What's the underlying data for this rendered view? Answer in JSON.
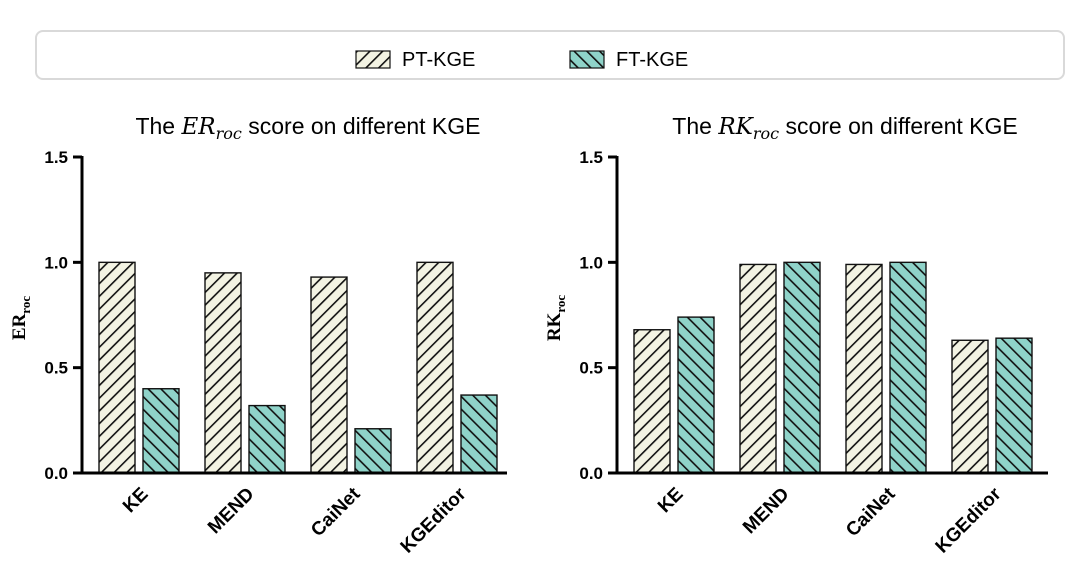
{
  "legend": [
    {
      "name": "PT-KGE",
      "pattern": "hatch-pt"
    },
    {
      "name": "FT-KGE",
      "pattern": "hatch-ft"
    }
  ],
  "colors": {
    "pt_fill": "#f3f3e3",
    "ft_fill": "#8fd3c9",
    "stroke": "#111111"
  },
  "chart_data": [
    {
      "type": "bar",
      "title_prefix": "The ",
      "title_math_main": "ER",
      "title_math_sub": "roc",
      "title_suffix": " score on different KGE",
      "ylabel_main": "ER",
      "ylabel_sub": "roc",
      "xlabel": "",
      "ylim": [
        0,
        1.5
      ],
      "yticks": [
        "0.0",
        "0.5",
        "1.0",
        "1.5"
      ],
      "categories": [
        "KE",
        "MEND",
        "CaiNet",
        "KGEditor"
      ],
      "series": [
        {
          "name": "PT-KGE",
          "values": [
            1.0,
            0.95,
            0.93,
            1.0
          ]
        },
        {
          "name": "FT-KGE",
          "values": [
            0.4,
            0.32,
            0.21,
            0.37
          ]
        }
      ],
      "grid": false
    },
    {
      "type": "bar",
      "title_prefix": "The ",
      "title_math_main": "RK",
      "title_math_sub": "roc",
      "title_suffix": " score on different KGE",
      "ylabel_main": "RK",
      "ylabel_sub": "roc",
      "xlabel": "",
      "ylim": [
        0,
        1.5
      ],
      "yticks": [
        "0.0",
        "0.5",
        "1.0",
        "1.5"
      ],
      "categories": [
        "KE",
        "MEND",
        "CaiNet",
        "KGEditor"
      ],
      "series": [
        {
          "name": "PT-KGE",
          "values": [
            0.68,
            0.99,
            0.99,
            0.63
          ]
        },
        {
          "name": "FT-KGE",
          "values": [
            0.74,
            1.0,
            1.0,
            0.64
          ]
        }
      ],
      "grid": false
    }
  ]
}
